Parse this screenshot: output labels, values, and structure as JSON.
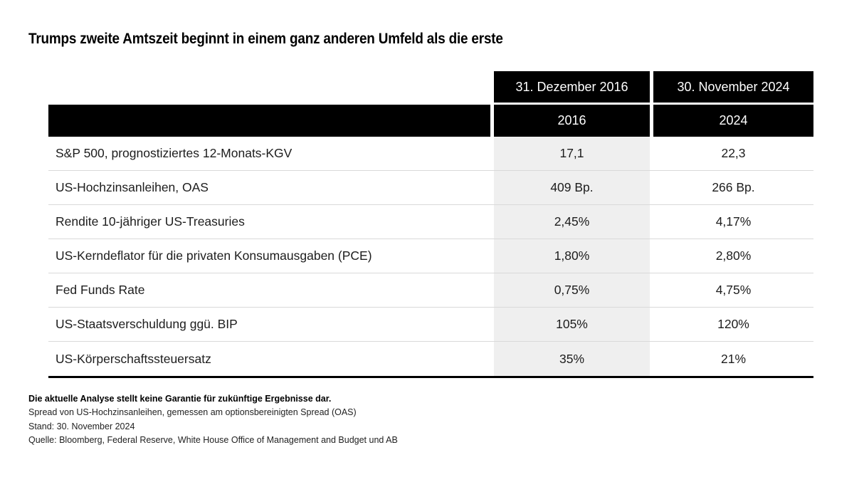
{
  "title": "Trumps zweite Amtszeit beginnt in einem ganz anderen Umfeld als die erste",
  "chart_data": {
    "type": "table",
    "title": "Trumps zweite Amtszeit beginnt in einem ganz anderen Umfeld als die erste",
    "column_groups": [
      "31. Dezember 2016",
      "30. November 2024"
    ],
    "columns": [
      "2016",
      "2024"
    ],
    "rows": [
      {
        "label": "S&P 500, prognostiziertes 12-Monats-KGV",
        "values": [
          "17,1",
          "22,3"
        ]
      },
      {
        "label": "US-Hochzinsanleihen, OAS",
        "values": [
          "409 Bp.",
          "266 Bp."
        ]
      },
      {
        "label": "Rendite 10-jähriger US-Treasuries",
        "values": [
          "2,45%",
          "4,17%"
        ]
      },
      {
        "label": "US-Kerndeflator für die privaten Konsumausgaben (PCE)",
        "values": [
          "1,80%",
          "2,80%"
        ]
      },
      {
        "label": "Fed Funds Rate",
        "values": [
          "0,75%",
          "4,75%"
        ]
      },
      {
        "label": "US-Staatsverschuldung ggü. BIP",
        "values": [
          "105%",
          "120%"
        ]
      },
      {
        "label": "US-Körperschaftssteuersatz",
        "values": [
          "35%",
          "21%"
        ]
      }
    ]
  },
  "footnotes": {
    "disclaimer": "Die aktuelle Analyse stellt keine Garantie für zukünftige Ergebnisse dar.",
    "note_oas": "Spread von US-Hochzinsanleihen, gemessen am optionsbereinigten Spread (OAS)",
    "as_of": "Stand: 30. November 2024",
    "source": "Quelle: Bloomberg, Federal Reserve, White House Office of Management and Budget und AB"
  },
  "colors": {
    "header_bg": "#000000",
    "header_text": "#ffffff",
    "col_2016_bg": "#efefef",
    "row_divider": "#d9d9d9",
    "body_text": "#1d1d1d"
  }
}
